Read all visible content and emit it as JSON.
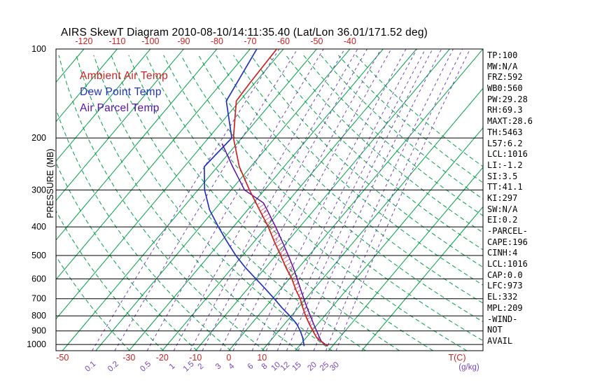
{
  "title": "AIRS SkewT Diagram 2010-08-10/14:11:35.40 (Lat/Lon 36.01/171.52 deg)",
  "legend": [
    {
      "label": "Ambient Air Temp",
      "color": "#cc2222"
    },
    {
      "label": "Dew Point Temp",
      "color": "#2233bb"
    },
    {
      "label": "Air Parcel Temp",
      "color": "#5a11a8"
    }
  ],
  "stats": [
    "TP:100",
    "MW:N/A",
    "FRZ:592",
    "WB0:560",
    "PW:29.28",
    "RH:69.3",
    "MAXT:28.6",
    "TH:5463",
    "L57:6.2",
    "LCL:1016",
    "LI:-1.2",
    "SI:3.5",
    "TT:41.1",
    "KI:297",
    "SW:N/A",
    "EI:0.2",
    "-PARCEL-",
    "CAPE:196",
    "CINH:4",
    "LCL:1016",
    "CAP:0.0",
    "LFC:973",
    "EL:332",
    "MPL:209",
    "-WIND-",
    "NOT",
    "AVAIL"
  ],
  "chart_data": {
    "type": "skewt",
    "title": "AIRS SkewT Diagram 2010-08-10/14:11:35.40 (Lat/Lon 36.01/171.52 deg)",
    "ylabel": "PRESSURE (MB)",
    "xlabel": "T(C)",
    "x2label": "(g/kg)",
    "pressure_ticks": [
      100,
      200,
      300,
      400,
      500,
      600,
      700,
      800,
      900,
      1000
    ],
    "pressure_range_mb": [
      100,
      1050
    ],
    "top_temp_ticks_c": [
      -120,
      -110,
      -100,
      -90,
      -80,
      -70,
      -60,
      -50,
      -40
    ],
    "bottom_temp_ticks_c": [
      -50,
      -30,
      -20,
      -10,
      0,
      10
    ],
    "mixing_ratio_lines_gkg": [
      0.1,
      0.2,
      0.5,
      1,
      1.5,
      2,
      3,
      4,
      6,
      8,
      10,
      12,
      15,
      20,
      25,
      30
    ],
    "isotherm_range_c": [
      -180,
      40
    ],
    "isotherm_step_c": 10,
    "dry_adiabat_theta_k": [
      240,
      450,
      10
    ],
    "colors": {
      "isotherm": "#00a045",
      "adiabat": "#00a045",
      "mixing": "#7744bb",
      "pressure_line": "#000000",
      "top_axis": "#cc2222"
    },
    "cape_region": {
      "p_bottom": 973,
      "p_top": 332,
      "hatch_color": "#cc3344"
    },
    "series": {
      "ambient_temp": {
        "label": "Ambient Air Temp",
        "color": "#cc2222",
        "points_p_t": [
          [
            1013,
            28.6
          ],
          [
            1000,
            27.3
          ],
          [
            950,
            23.2
          ],
          [
            900,
            20.3
          ],
          [
            850,
            17.3
          ],
          [
            800,
            14.3
          ],
          [
            750,
            11.3
          ],
          [
            700,
            8.3
          ],
          [
            650,
            4.5
          ],
          [
            600,
            0.8
          ],
          [
            550,
            -3.8
          ],
          [
            500,
            -8.5
          ],
          [
            450,
            -13.8
          ],
          [
            400,
            -19.5
          ],
          [
            350,
            -26.5
          ],
          [
            300,
            -34.5
          ],
          [
            250,
            -43.5
          ],
          [
            200,
            -52.5
          ],
          [
            150,
            -61.0
          ],
          [
            130,
            -61.5
          ],
          [
            100,
            -62.0
          ]
        ]
      },
      "dew_point": {
        "label": "Dew Point Temp",
        "color": "#2233bb",
        "points_p_t": [
          [
            1013,
            21.5
          ],
          [
            1000,
            21.0
          ],
          [
            950,
            19.0
          ],
          [
            900,
            16.5
          ],
          [
            850,
            13.5
          ],
          [
            800,
            9.5
          ],
          [
            750,
            5.0
          ],
          [
            700,
            0.5
          ],
          [
            650,
            -4.5
          ],
          [
            600,
            -10.0
          ],
          [
            550,
            -16.0
          ],
          [
            500,
            -22.0
          ],
          [
            450,
            -28.0
          ],
          [
            400,
            -34.5
          ],
          [
            350,
            -41.5
          ],
          [
            300,
            -48.0
          ],
          [
            250,
            -54.0
          ],
          [
            200,
            -53.0
          ],
          [
            150,
            -64.0
          ],
          [
            100,
            -68.0
          ]
        ]
      },
      "parcel_temp": {
        "label": "Air Parcel Temp",
        "color": "#5a11a8",
        "points_p_t": [
          [
            1013,
            28.6
          ],
          [
            1000,
            27.5
          ],
          [
            975,
            25.4
          ],
          [
            950,
            24.1
          ],
          [
            900,
            21.4
          ],
          [
            850,
            18.6
          ],
          [
            800,
            15.7
          ],
          [
            750,
            12.6
          ],
          [
            700,
            9.4
          ],
          [
            650,
            6.0
          ],
          [
            600,
            2.4
          ],
          [
            550,
            -1.6
          ],
          [
            500,
            -6.2
          ],
          [
            450,
            -11.4
          ],
          [
            400,
            -17.3
          ],
          [
            350,
            -24.2
          ],
          [
            332,
            -27.0
          ],
          [
            300,
            -36.0
          ],
          [
            250,
            -45.5
          ],
          [
            209,
            -54.5
          ]
        ]
      }
    }
  }
}
